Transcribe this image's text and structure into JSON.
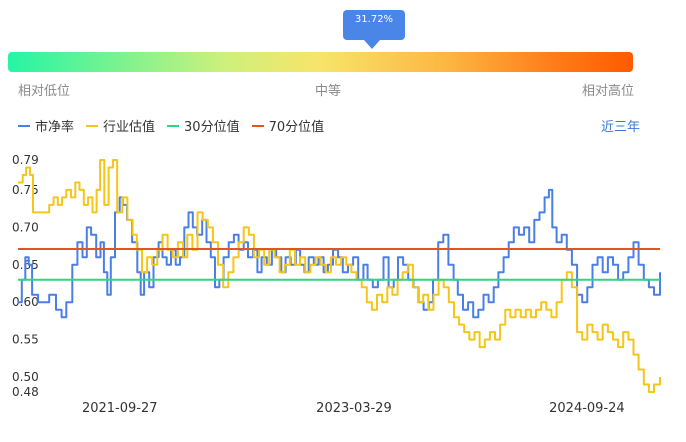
{
  "gauge": {
    "percentile_label": "31.72%",
    "percentile_value": 0.3172,
    "labels": {
      "low": "相对低位",
      "mid": "中等",
      "high": "相对高位"
    }
  },
  "legend": {
    "items": [
      {
        "label": "市净率",
        "color": "#4a7fe8"
      },
      {
        "label": "行业估值",
        "color": "#f5c518"
      },
      {
        "label": "30分位值",
        "color": "#2fd67c"
      },
      {
        "label": "70分位值",
        "color": "#e0561c"
      }
    ]
  },
  "range_selector": {
    "label": "近三年"
  },
  "chart_data": {
    "type": "line",
    "x_ticks": [
      "2021-09-27",
      "2023-03-29",
      "2024-09-24"
    ],
    "y_ticks": [
      "0.48",
      "0.50",
      "0.55",
      "0.60",
      "0.65",
      "0.70",
      "0.75",
      "0.79"
    ],
    "ylim": [
      0.48,
      0.79
    ],
    "x_range": [
      "2021-02-01",
      "2025-03-14"
    ],
    "series": [
      {
        "name": "市净率",
        "color": "#4a7fe8",
        "points": [
          [
            "2021-02-01",
            0.6
          ],
          [
            "2021-02-10",
            0.63
          ],
          [
            "2021-02-18",
            0.66
          ],
          [
            "2021-02-26",
            0.65
          ],
          [
            "2021-03-06",
            0.61
          ],
          [
            "2021-03-20",
            0.6
          ],
          [
            "2021-04-02",
            0.6
          ],
          [
            "2021-04-15",
            0.61
          ],
          [
            "2021-05-01",
            0.59
          ],
          [
            "2021-05-14",
            0.58
          ],
          [
            "2021-05-25",
            0.6
          ],
          [
            "2021-06-08",
            0.65
          ],
          [
            "2021-06-20",
            0.68
          ],
          [
            "2021-07-02",
            0.66
          ],
          [
            "2021-07-12",
            0.7
          ],
          [
            "2021-07-22",
            0.69
          ],
          [
            "2021-08-03",
            0.66
          ],
          [
            "2021-08-13",
            0.68
          ],
          [
            "2021-08-21",
            0.64
          ],
          [
            "2021-08-29",
            0.61
          ],
          [
            "2021-09-06",
            0.66
          ],
          [
            "2021-09-16",
            0.72
          ],
          [
            "2021-09-27",
            0.74
          ],
          [
            "2021-10-04",
            0.73
          ],
          [
            "2021-10-14",
            0.71
          ],
          [
            "2021-10-26",
            0.68
          ],
          [
            "2021-11-07",
            0.64
          ],
          [
            "2021-11-15",
            0.61
          ],
          [
            "2021-11-23",
            0.64
          ],
          [
            "2021-12-05",
            0.62
          ],
          [
            "2021-12-15",
            0.66
          ],
          [
            "2021-12-27",
            0.68
          ],
          [
            "2022-01-05",
            0.66
          ],
          [
            "2022-01-15",
            0.65
          ],
          [
            "2022-01-25",
            0.67
          ],
          [
            "2022-02-05",
            0.65
          ],
          [
            "2022-02-15",
            0.66
          ],
          [
            "2022-02-25",
            0.7
          ],
          [
            "2022-03-07",
            0.72
          ],
          [
            "2022-03-17",
            0.7
          ],
          [
            "2022-03-27",
            0.69
          ],
          [
            "2022-04-08",
            0.71
          ],
          [
            "2022-04-18",
            0.68
          ],
          [
            "2022-04-28",
            0.66
          ],
          [
            "2022-05-08",
            0.62
          ],
          [
            "2022-05-18",
            0.63
          ],
          [
            "2022-05-28",
            0.66
          ],
          [
            "2022-06-09",
            0.68
          ],
          [
            "2022-06-21",
            0.69
          ],
          [
            "2022-07-02",
            0.67
          ],
          [
            "2022-07-14",
            0.68
          ],
          [
            "2022-07-24",
            0.66
          ],
          [
            "2022-08-05",
            0.67
          ],
          [
            "2022-08-15",
            0.64
          ],
          [
            "2022-08-25",
            0.66
          ],
          [
            "2022-09-06",
            0.65
          ],
          [
            "2022-09-18",
            0.67
          ],
          [
            "2022-09-28",
            0.66
          ],
          [
            "2022-10-10",
            0.64
          ],
          [
            "2022-10-20",
            0.66
          ],
          [
            "2022-11-01",
            0.65
          ],
          [
            "2022-11-13",
            0.67
          ],
          [
            "2022-11-23",
            0.65
          ],
          [
            "2022-12-03",
            0.64
          ],
          [
            "2022-12-13",
            0.66
          ],
          [
            "2022-12-25",
            0.65
          ],
          [
            "2023-01-05",
            0.66
          ],
          [
            "2023-01-17",
            0.64
          ],
          [
            "2023-01-27",
            0.65
          ],
          [
            "2023-02-08",
            0.67
          ],
          [
            "2023-02-20",
            0.66
          ],
          [
            "2023-03-03",
            0.64
          ],
          [
            "2023-03-15",
            0.65
          ],
          [
            "2023-03-27",
            0.66
          ],
          [
            "2023-04-08",
            0.63
          ],
          [
            "2023-04-20",
            0.65
          ],
          [
            "2023-04-30",
            0.63
          ],
          [
            "2023-05-12",
            0.62
          ],
          [
            "2023-05-24",
            0.63
          ],
          [
            "2023-06-06",
            0.66
          ],
          [
            "2023-06-18",
            0.62
          ],
          [
            "2023-06-30",
            0.63
          ],
          [
            "2023-07-10",
            0.66
          ],
          [
            "2023-07-22",
            0.65
          ],
          [
            "2023-08-03",
            0.63
          ],
          [
            "2023-08-15",
            0.62
          ],
          [
            "2023-08-27",
            0.6
          ],
          [
            "2023-09-08",
            0.59
          ],
          [
            "2023-09-20",
            0.6
          ],
          [
            "2023-09-30",
            0.63
          ],
          [
            "2023-10-12",
            0.68
          ],
          [
            "2023-10-24",
            0.69
          ],
          [
            "2023-11-05",
            0.65
          ],
          [
            "2023-11-17",
            0.63
          ],
          [
            "2023-11-27",
            0.61
          ],
          [
            "2023-12-09",
            0.59
          ],
          [
            "2023-12-21",
            0.6
          ],
          [
            "2024-01-02",
            0.58
          ],
          [
            "2024-01-14",
            0.59
          ],
          [
            "2024-01-26",
            0.61
          ],
          [
            "2024-02-07",
            0.6
          ],
          [
            "2024-02-19",
            0.62
          ],
          [
            "2024-03-01",
            0.64
          ],
          [
            "2024-03-13",
            0.66
          ],
          [
            "2024-03-25",
            0.68
          ],
          [
            "2024-04-06",
            0.7
          ],
          [
            "2024-04-18",
            0.69
          ],
          [
            "2024-04-30",
            0.7
          ],
          [
            "2024-05-12",
            0.68
          ],
          [
            "2024-05-24",
            0.71
          ],
          [
            "2024-06-05",
            0.72
          ],
          [
            "2024-06-17",
            0.74
          ],
          [
            "2024-06-27",
            0.75
          ],
          [
            "2024-07-05",
            0.7
          ],
          [
            "2024-07-15",
            0.68
          ],
          [
            "2024-07-27",
            0.69
          ],
          [
            "2024-08-08",
            0.67
          ],
          [
            "2024-08-20",
            0.65
          ],
          [
            "2024-09-01",
            0.61
          ],
          [
            "2024-09-13",
            0.6
          ],
          [
            "2024-09-25",
            0.62
          ],
          [
            "2024-10-07",
            0.65
          ],
          [
            "2024-10-19",
            0.66
          ],
          [
            "2024-10-31",
            0.64
          ],
          [
            "2024-11-12",
            0.66
          ],
          [
            "2024-11-24",
            0.65
          ],
          [
            "2024-12-06",
            0.63
          ],
          [
            "2024-12-18",
            0.64
          ],
          [
            "2024-12-30",
            0.66
          ],
          [
            "2025-01-11",
            0.68
          ],
          [
            "2025-01-23",
            0.65
          ],
          [
            "2025-02-04",
            0.63
          ],
          [
            "2025-02-16",
            0.62
          ],
          [
            "2025-02-28",
            0.61
          ],
          [
            "2025-03-14",
            0.64
          ]
        ]
      },
      {
        "name": "行业估值",
        "color": "#f5c518",
        "points": [
          [
            "2021-02-01",
            0.76
          ],
          [
            "2021-02-12",
            0.77
          ],
          [
            "2021-02-20",
            0.78
          ],
          [
            "2021-03-01",
            0.77
          ],
          [
            "2021-03-08",
            0.72
          ],
          [
            "2021-03-20",
            0.72
          ],
          [
            "2021-04-05",
            0.72
          ],
          [
            "2021-04-15",
            0.73
          ],
          [
            "2021-04-25",
            0.74
          ],
          [
            "2021-05-05",
            0.73
          ],
          [
            "2021-05-15",
            0.74
          ],
          [
            "2021-05-25",
            0.75
          ],
          [
            "2021-06-05",
            0.74
          ],
          [
            "2021-06-15",
            0.76
          ],
          [
            "2021-06-25",
            0.75
          ],
          [
            "2021-07-05",
            0.73
          ],
          [
            "2021-07-15",
            0.74
          ],
          [
            "2021-07-25",
            0.72
          ],
          [
            "2021-08-04",
            0.75
          ],
          [
            "2021-08-12",
            0.79
          ],
          [
            "2021-08-22",
            0.73
          ],
          [
            "2021-09-01",
            0.78
          ],
          [
            "2021-09-11",
            0.79
          ],
          [
            "2021-09-21",
            0.72
          ],
          [
            "2021-10-03",
            0.74
          ],
          [
            "2021-10-15",
            0.71
          ],
          [
            "2021-10-27",
            0.69
          ],
          [
            "2021-11-06",
            0.67
          ],
          [
            "2021-11-18",
            0.64
          ],
          [
            "2021-11-30",
            0.66
          ],
          [
            "2021-12-12",
            0.65
          ],
          [
            "2021-12-24",
            0.67
          ],
          [
            "2022-01-05",
            0.69
          ],
          [
            "2022-01-17",
            0.67
          ],
          [
            "2022-01-29",
            0.66
          ],
          [
            "2022-02-10",
            0.68
          ],
          [
            "2022-02-22",
            0.66
          ],
          [
            "2022-03-04",
            0.69
          ],
          [
            "2022-03-16",
            0.67
          ],
          [
            "2022-03-28",
            0.72
          ],
          [
            "2022-04-09",
            0.71
          ],
          [
            "2022-04-21",
            0.7
          ],
          [
            "2022-05-03",
            0.68
          ],
          [
            "2022-05-15",
            0.65
          ],
          [
            "2022-05-27",
            0.62
          ],
          [
            "2022-06-08",
            0.64
          ],
          [
            "2022-06-20",
            0.66
          ],
          [
            "2022-07-02",
            0.68
          ],
          [
            "2022-07-14",
            0.7
          ],
          [
            "2022-07-26",
            0.69
          ],
          [
            "2022-08-07",
            0.66
          ],
          [
            "2022-08-19",
            0.67
          ],
          [
            "2022-08-31",
            0.65
          ],
          [
            "2022-09-12",
            0.67
          ],
          [
            "2022-09-24",
            0.66
          ],
          [
            "2022-10-06",
            0.64
          ],
          [
            "2022-10-18",
            0.65
          ],
          [
            "2022-10-30",
            0.67
          ],
          [
            "2022-11-11",
            0.65
          ],
          [
            "2022-11-23",
            0.66
          ],
          [
            "2022-12-05",
            0.64
          ],
          [
            "2022-12-17",
            0.65
          ],
          [
            "2022-12-29",
            0.66
          ],
          [
            "2023-01-10",
            0.65
          ],
          [
            "2023-01-22",
            0.64
          ],
          [
            "2023-02-03",
            0.66
          ],
          [
            "2023-02-15",
            0.65
          ],
          [
            "2023-02-27",
            0.66
          ],
          [
            "2023-03-11",
            0.65
          ],
          [
            "2023-03-23",
            0.64
          ],
          [
            "2023-04-04",
            0.63
          ],
          [
            "2023-04-16",
            0.62
          ],
          [
            "2023-04-28",
            0.6
          ],
          [
            "2023-05-10",
            0.59
          ],
          [
            "2023-05-22",
            0.61
          ],
          [
            "2023-06-03",
            0.6
          ],
          [
            "2023-06-15",
            0.62
          ],
          [
            "2023-06-27",
            0.61
          ],
          [
            "2023-07-09",
            0.63
          ],
          [
            "2023-07-21",
            0.64
          ],
          [
            "2023-08-02",
            0.65
          ],
          [
            "2023-08-14",
            0.62
          ],
          [
            "2023-08-26",
            0.6
          ],
          [
            "2023-09-07",
            0.61
          ],
          [
            "2023-09-19",
            0.59
          ],
          [
            "2023-10-01",
            0.61
          ],
          [
            "2023-10-13",
            0.63
          ],
          [
            "2023-10-25",
            0.62
          ],
          [
            "2023-11-06",
            0.6
          ],
          [
            "2023-11-18",
            0.58
          ],
          [
            "2023-11-30",
            0.57
          ],
          [
            "2023-12-12",
            0.56
          ],
          [
            "2023-12-24",
            0.55
          ],
          [
            "2024-01-05",
            0.56
          ],
          [
            "2024-01-17",
            0.54
          ],
          [
            "2024-01-29",
            0.55
          ],
          [
            "2024-02-10",
            0.56
          ],
          [
            "2024-02-22",
            0.55
          ],
          [
            "2024-03-05",
            0.57
          ],
          [
            "2024-03-17",
            0.59
          ],
          [
            "2024-03-29",
            0.58
          ],
          [
            "2024-04-10",
            0.59
          ],
          [
            "2024-04-22",
            0.58
          ],
          [
            "2024-05-04",
            0.59
          ],
          [
            "2024-05-16",
            0.58
          ],
          [
            "2024-05-28",
            0.59
          ],
          [
            "2024-06-09",
            0.6
          ],
          [
            "2024-06-21",
            0.59
          ],
          [
            "2024-07-03",
            0.58
          ],
          [
            "2024-07-15",
            0.6
          ],
          [
            "2024-07-27",
            0.63
          ],
          [
            "2024-08-08",
            0.64
          ],
          [
            "2024-08-20",
            0.62
          ],
          [
            "2024-09-01",
            0.56
          ],
          [
            "2024-09-13",
            0.55
          ],
          [
            "2024-09-25",
            0.57
          ],
          [
            "2024-10-07",
            0.56
          ],
          [
            "2024-10-19",
            0.55
          ],
          [
            "2024-10-31",
            0.57
          ],
          [
            "2024-11-12",
            0.56
          ],
          [
            "2024-11-24",
            0.55
          ],
          [
            "2024-12-06",
            0.54
          ],
          [
            "2024-12-18",
            0.56
          ],
          [
            "2024-12-30",
            0.55
          ],
          [
            "2025-01-11",
            0.53
          ],
          [
            "2025-01-23",
            0.51
          ],
          [
            "2025-02-04",
            0.49
          ],
          [
            "2025-02-16",
            0.48
          ],
          [
            "2025-02-28",
            0.49
          ],
          [
            "2025-03-14",
            0.5
          ]
        ]
      },
      {
        "name": "30分位值",
        "color": "#2fd67c",
        "constant": 0.63
      },
      {
        "name": "70分位值",
        "color": "#e0561c",
        "constant": 0.671
      }
    ],
    "grid": false,
    "legend_position": "top-left"
  }
}
